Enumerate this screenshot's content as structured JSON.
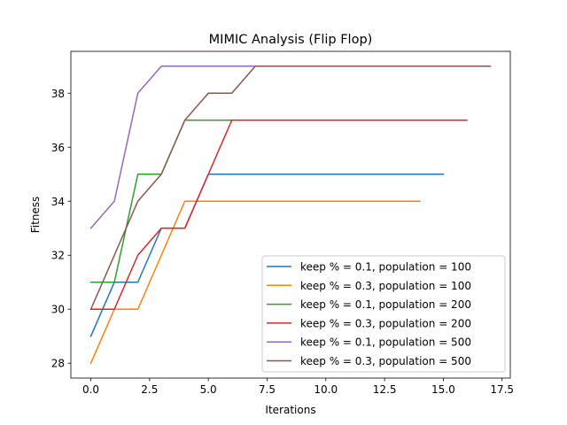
{
  "chart_data": {
    "type": "line",
    "title": "MIMIC Analysis (Flip Flop)",
    "xlabel": "Iterations",
    "ylabel": "Fitness",
    "xlim": [
      -0.85,
      17.85
    ],
    "ylim": [
      27.45,
      39.55
    ],
    "x_ticks": [
      0,
      2.5,
      5,
      7.5,
      10,
      12.5,
      15,
      17.5
    ],
    "x_tick_labels": [
      "0.0",
      "2.5",
      "5.0",
      "7.5",
      "10.0",
      "12.5",
      "15.0",
      "17.5"
    ],
    "y_ticks": [
      28,
      30,
      32,
      34,
      36,
      38
    ],
    "y_tick_labels": [
      "28",
      "30",
      "32",
      "34",
      "36",
      "38"
    ],
    "grid": false,
    "legend_position": "lower-right",
    "series": [
      {
        "name": "keep % = 0.1, population = 100",
        "color": "#1f77b4",
        "x": [
          0,
          1,
          2,
          3,
          4,
          5,
          6,
          7,
          8,
          9,
          10,
          11,
          12,
          13,
          14,
          15
        ],
        "y": [
          29,
          31,
          31,
          33,
          33,
          35,
          35,
          35,
          35,
          35,
          35,
          35,
          35,
          35,
          35,
          35
        ]
      },
      {
        "name": "keep % = 0.3, population = 100",
        "color": "#ff7f0e",
        "x": [
          0,
          1,
          2,
          3,
          4,
          5,
          6,
          7,
          8,
          9,
          10,
          11,
          12,
          13,
          14
        ],
        "y": [
          28,
          30,
          30,
          32,
          34,
          34,
          34,
          34,
          34,
          34,
          34,
          34,
          34,
          34,
          34
        ]
      },
      {
        "name": "keep % = 0.1, population = 200",
        "color": "#2ca02c",
        "x": [
          0,
          1,
          2,
          3,
          4,
          5,
          6,
          7,
          8,
          9,
          10,
          11,
          12,
          13,
          14
        ],
        "y": [
          31,
          31,
          35,
          35,
          37,
          37,
          37,
          37,
          37,
          37,
          37,
          37,
          37,
          37,
          37
        ]
      },
      {
        "name": "keep % = 0.3, population = 200",
        "color": "#d62728",
        "x": [
          0,
          1,
          2,
          3,
          4,
          5,
          6,
          7,
          8,
          9,
          10,
          11,
          12,
          13,
          14,
          15,
          16
        ],
        "y": [
          30,
          30,
          32,
          33,
          33,
          35,
          37,
          37,
          37,
          37,
          37,
          37,
          37,
          37,
          37,
          37,
          37
        ]
      },
      {
        "name": "keep % = 0.1, population = 500",
        "color": "#9467bd",
        "x": [
          0,
          1,
          2,
          3,
          4,
          5,
          6,
          7,
          8,
          9,
          10,
          11,
          12,
          13
        ],
        "y": [
          33,
          34,
          38,
          39,
          39,
          39,
          39,
          39,
          39,
          39,
          39,
          39,
          39,
          39
        ]
      },
      {
        "name": "keep % = 0.3, population = 500",
        "color": "#8c564b",
        "x": [
          0,
          1,
          2,
          3,
          4,
          5,
          6,
          7,
          8,
          9,
          10,
          11,
          12,
          13,
          14,
          15,
          16,
          17
        ],
        "y": [
          30,
          32,
          34,
          35,
          37,
          38,
          38,
          39,
          39,
          39,
          39,
          39,
          39,
          39,
          39,
          39,
          39,
          39
        ]
      }
    ]
  }
}
